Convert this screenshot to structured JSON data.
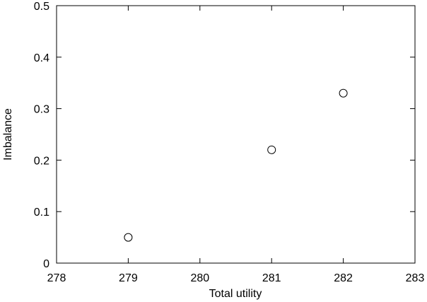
{
  "chart_data": {
    "type": "scatter",
    "x_label": "Total utility",
    "y_label": "Imbalance",
    "series": [
      {
        "x": [
          279,
          281,
          282
        ],
        "values": [
          0.05,
          0.22,
          0.33
        ],
        "color": "#000000"
      }
    ],
    "xlim": [
      278,
      283
    ],
    "xticks": [
      278,
      279,
      280,
      281,
      282,
      283
    ],
    "ylim": [
      0,
      0.5
    ],
    "yticks": [
      0,
      0.1,
      0.2,
      0.3,
      0.4,
      0.5
    ]
  }
}
